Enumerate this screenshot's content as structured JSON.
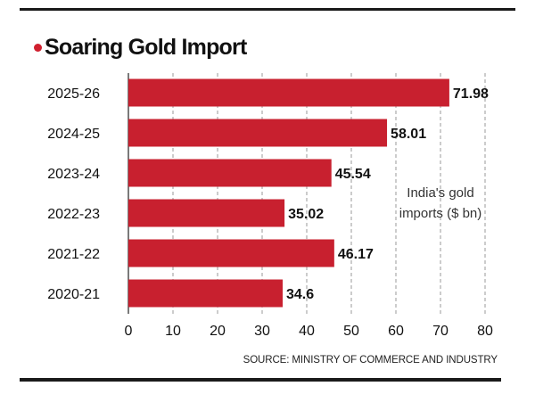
{
  "title": "Soaring Gold Import",
  "source": "SOURCE: MINISTRY OF COMMERCE AND INDUSTRY",
  "colors": {
    "bar": "#c8202f",
    "accent_dot": "#d0202f",
    "grid": "#9a9a9a",
    "text": "#111111"
  },
  "chart_data": {
    "type": "bar",
    "orientation": "horizontal",
    "categories": [
      "2025-26",
      "2024-25",
      "2023-24",
      "2022-23",
      "2021-22",
      "2020-21"
    ],
    "values": [
      71.98,
      58.01,
      45.54,
      35.02,
      46.17,
      34.6
    ],
    "value_labels": [
      "71.98",
      "58.01",
      "45.54",
      "35.02",
      "46.17",
      "34.6"
    ],
    "annotation": [
      "India's gold",
      "imports ($ bn)"
    ],
    "xlim": [
      0,
      80
    ],
    "xticks": [
      0,
      10,
      20,
      30,
      40,
      50,
      60,
      70,
      80
    ],
    "grid": "vertical dashed"
  }
}
